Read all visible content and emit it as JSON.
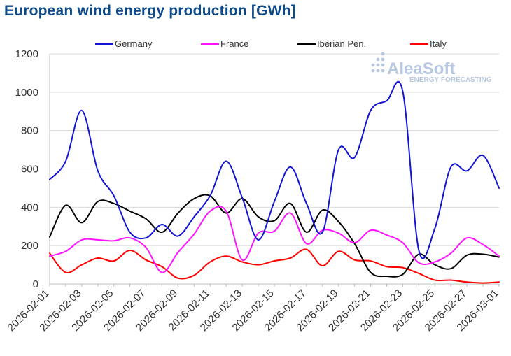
{
  "chart_data": {
    "type": "line",
    "title": "European wind energy production [GWh]",
    "xlabel": "",
    "ylabel": "",
    "ylim": [
      0,
      1200
    ],
    "yticks": [
      0,
      200,
      400,
      600,
      800,
      1000,
      1200
    ],
    "grid": "horizontal",
    "legend_position": "top",
    "x": [
      "2026-02-01",
      "2026-02-02",
      "2026-02-03",
      "2026-02-04",
      "2026-02-05",
      "2026-02-06",
      "2026-02-07",
      "2026-02-08",
      "2026-02-09",
      "2026-02-10",
      "2026-02-11",
      "2026-02-12",
      "2026-02-13",
      "2026-02-14",
      "2026-02-15",
      "2026-02-16",
      "2026-02-17",
      "2026-02-18",
      "2026-02-19",
      "2026-02-20",
      "2026-02-21",
      "2026-02-22",
      "2026-02-23",
      "2026-02-24",
      "2026-02-25",
      "2026-02-26",
      "2026-02-27",
      "2026-02-28",
      "2026-03-01"
    ],
    "xtick_labels": [
      "2026-02-01",
      "2026-02-03",
      "2026-02-05",
      "2026-02-07",
      "2026-02-09",
      "2026-02-11",
      "2026-02-13",
      "2026-02-15",
      "2026-02-17",
      "2026-02-19",
      "2026-02-21",
      "2026-02-23",
      "2026-02-25",
      "2026-02-27",
      "2026-03-01"
    ],
    "series": [
      {
        "name": "Germany",
        "color": "#1414d4",
        "values": [
          545,
          640,
          905,
          590,
          460,
          270,
          240,
          310,
          250,
          350,
          460,
          640,
          450,
          230,
          430,
          610,
          420,
          270,
          700,
          660,
          905,
          955,
          1005,
          175,
          290,
          610,
          590,
          670,
          500
        ]
      },
      {
        "name": "France",
        "color": "#ff14ff",
        "values": [
          145,
          170,
          230,
          230,
          225,
          240,
          190,
          60,
          165,
          260,
          380,
          380,
          125,
          265,
          275,
          370,
          210,
          280,
          265,
          215,
          280,
          255,
          215,
          110,
          115,
          160,
          240,
          205,
          145
        ]
      },
      {
        "name": "Iberian Pen.",
        "color": "#000000",
        "values": [
          245,
          410,
          320,
          430,
          420,
          380,
          340,
          270,
          370,
          445,
          460,
          370,
          445,
          350,
          330,
          420,
          270,
          385,
          325,
          210,
          60,
          40,
          50,
          155,
          100,
          80,
          150,
          155,
          140
        ]
      },
      {
        "name": "Italy",
        "color": "#ff0000",
        "values": [
          160,
          60,
          100,
          135,
          120,
          175,
          125,
          90,
          30,
          45,
          115,
          145,
          115,
          100,
          120,
          135,
          180,
          95,
          170,
          125,
          120,
          90,
          85,
          55,
          20,
          20,
          10,
          5,
          10
        ]
      }
    ],
    "watermark": {
      "brand": "AleaSoft",
      "tagline": "ENERGY FORECASTING"
    }
  }
}
